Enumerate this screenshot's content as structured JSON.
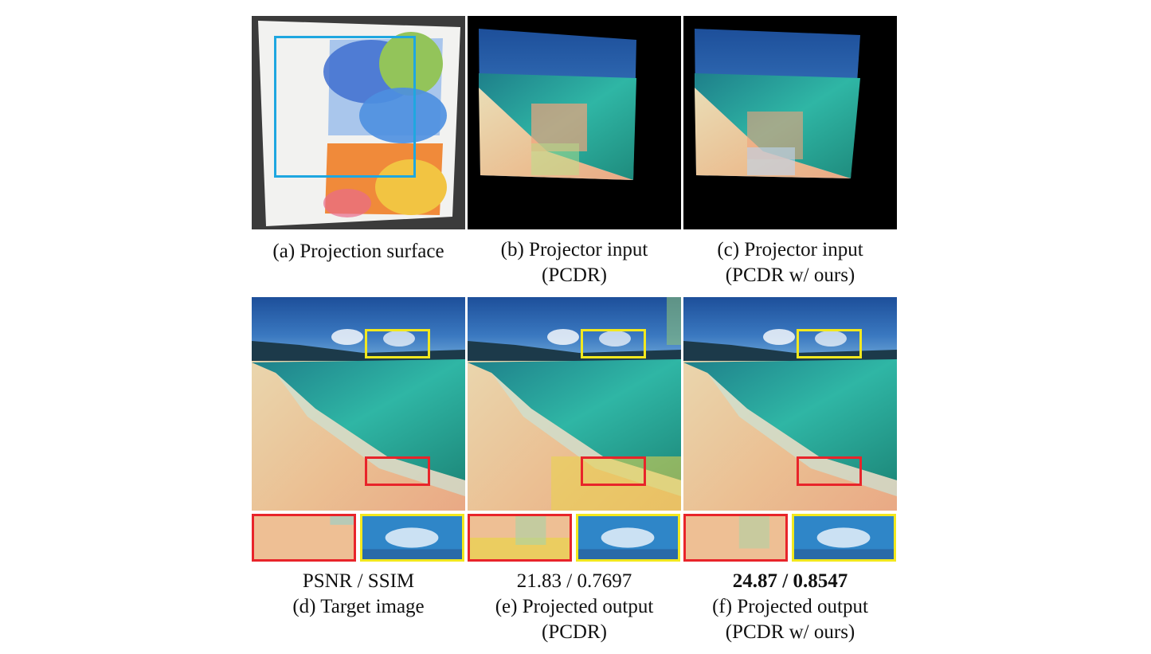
{
  "captions": {
    "a": "(a) Projection surface",
    "b_line1": "(b) Projector input",
    "b_line2": "(PCDR)",
    "c_line1": "(c) Projector input",
    "c_line2": "(PCDR w/ ours)",
    "d_metric": "PSNR / SSIM",
    "d_line1": "(d) Target image",
    "e_metric": "21.83 / 0.7697",
    "e_line1": "(e) Projected output",
    "e_line2": "(PCDR)",
    "f_metric": "24.87 / 0.8547",
    "f_line1": "(f) Projected output",
    "f_line2": "(PCDR w/ ours)"
  },
  "colors": {
    "roi_box": "#1fa7e0",
    "red_box": "#e8242a",
    "yellow_box": "#f2e81e"
  }
}
